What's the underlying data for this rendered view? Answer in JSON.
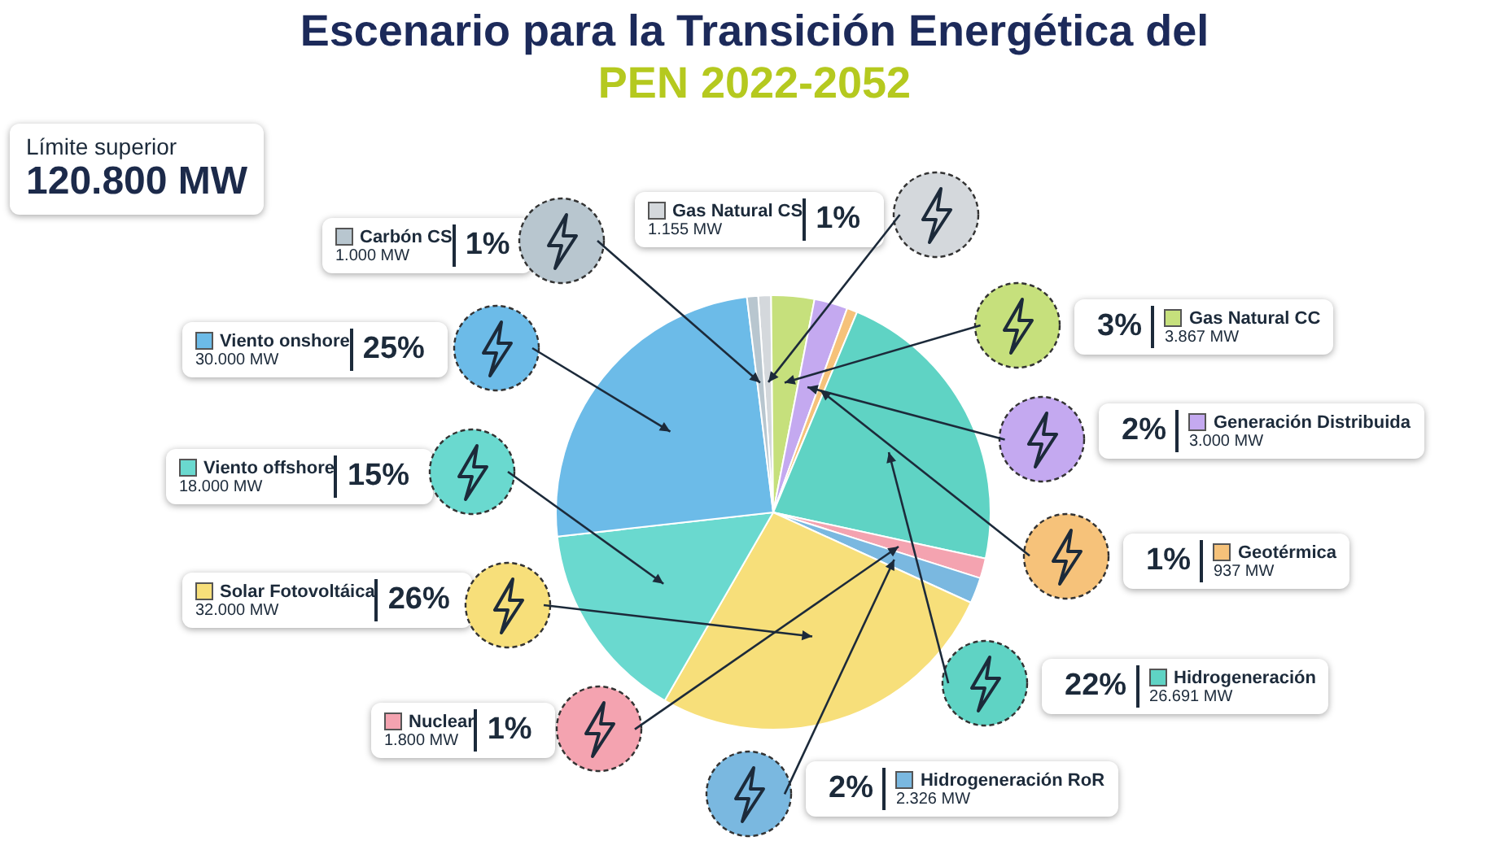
{
  "chart_data": {
    "type": "pie",
    "title": "Escenario para la Transición Energética del",
    "subtitle": "PEN 2022-2052",
    "categories": [
      "Gas Natural CS",
      "Gas Natural CC",
      "Generación Distribuida",
      "Geotérmica",
      "Hidrogeneración",
      "Nuclear",
      "Hidrogeneración RoR",
      "Solar Fotovoltáica",
      "Viento offshore",
      "Viento onshore",
      "Carbón CS"
    ],
    "values": [
      1155,
      3867,
      3000,
      937,
      26691,
      1800,
      2326,
      32000,
      18000,
      30000,
      1000
    ],
    "colors": [
      "#d4d8dc",
      "#c6e07c",
      "#c4a9f0",
      "#f6c27a",
      "#5fd3c4",
      "#f4a3b0",
      "#7ab8e0",
      "#f7df7a",
      "#6ad9cf",
      "#6cbbe8",
      "#b8c6cf"
    ],
    "value_labels": [
      "1.155 MW",
      "3.867 MW",
      "3.000 MW",
      "937 MW",
      "26.691 MW",
      "1.800 MW",
      "2.326 MW",
      "32.000 MW",
      "18.000 MW",
      "30.000 MW",
      "1.000 MW"
    ],
    "annotations": [
      "Límite superior",
      "120.800 MW",
      "1%",
      "3%",
      "2%",
      "1%",
      "22%",
      "1%",
      "2%",
      "26%",
      "15%",
      "25%",
      "1%"
    ],
    "legend": "right"
  }
}
